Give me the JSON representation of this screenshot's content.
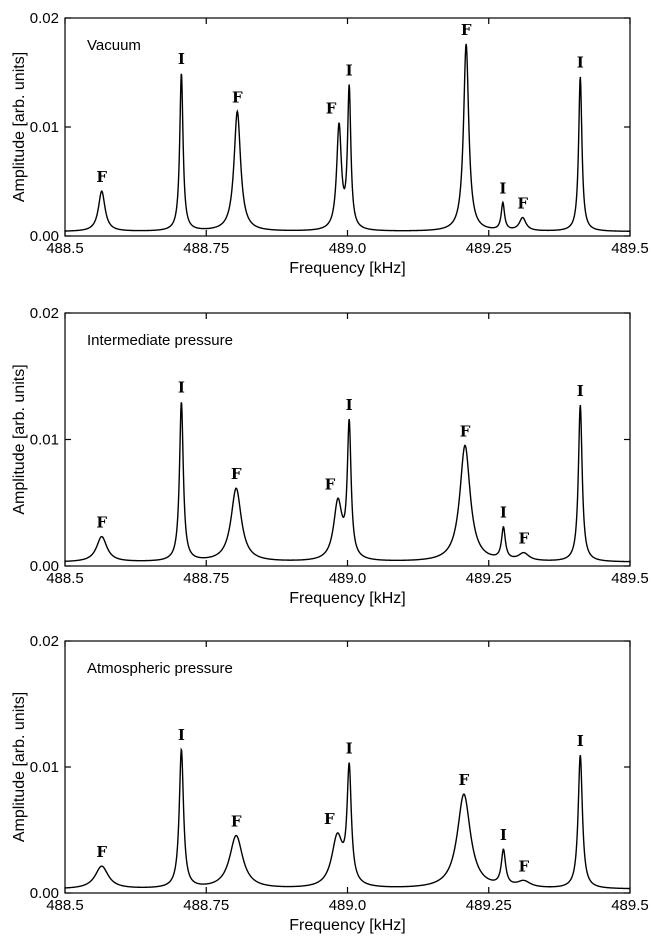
{
  "chart_data": [
    {
      "type": "line",
      "title": "Vacuum",
      "xlabel": "Frequency [kHz]",
      "ylabel": "Amplitude [arb. units]",
      "xlim": [
        488.5,
        489.5
      ],
      "ylim": [
        0,
        0.02
      ],
      "xticks": [
        "488.5",
        "488.75",
        "489.0",
        "489.25",
        "489.5"
      ],
      "yticks": [
        "0.00",
        "0.01",
        "0.02"
      ],
      "baseline": 0.0004,
      "grid": false,
      "series": [
        {
          "peaks": [
            {
              "x": 488.565,
              "y": 0.0037,
              "label": "F",
              "width": 0.007
            },
            {
              "x": 488.706,
              "y": 0.0145,
              "label": "I",
              "width": 0.0035
            },
            {
              "x": 488.805,
              "y": 0.011,
              "label": "F",
              "width": 0.007
            },
            {
              "x": 488.985,
              "y": 0.0095,
              "label": "F",
              "width": 0.005
            },
            {
              "x": 489.003,
              "y": 0.0128,
              "label": "I",
              "width": 0.0035
            },
            {
              "x": 489.21,
              "y": 0.0172,
              "label": "F",
              "width": 0.0055
            },
            {
              "x": 489.275,
              "y": 0.0025,
              "label": "I",
              "width": 0.0035
            },
            {
              "x": 489.31,
              "y": 0.0012,
              "label": "F",
              "width": 0.007
            },
            {
              "x": 489.412,
              "y": 0.0142,
              "label": "I",
              "width": 0.0035
            }
          ]
        }
      ]
    },
    {
      "type": "line",
      "title": "Intermediate pressure",
      "xlabel": "Frequency [kHz]",
      "ylabel": "Amplitude [arb. units]",
      "xlim": [
        488.5,
        489.5
      ],
      "ylim": [
        0,
        0.02
      ],
      "xticks": [
        "488.5",
        "488.75",
        "489.0",
        "489.25",
        "489.5"
      ],
      "yticks": [
        "0.00",
        "0.01",
        "0.02"
      ],
      "baseline": 0.0003,
      "grid": false,
      "series": [
        {
          "peaks": [
            {
              "x": 488.565,
              "y": 0.002,
              "label": "F",
              "width": 0.011
            },
            {
              "x": 488.706,
              "y": 0.0126,
              "label": "I",
              "width": 0.004
            },
            {
              "x": 488.803,
              "y": 0.0058,
              "label": "F",
              "width": 0.011
            },
            {
              "x": 488.983,
              "y": 0.0046,
              "label": "F",
              "width": 0.009
            },
            {
              "x": 489.003,
              "y": 0.0105,
              "label": "I",
              "width": 0.004
            },
            {
              "x": 489.208,
              "y": 0.0092,
              "label": "F",
              "width": 0.011
            },
            {
              "x": 489.276,
              "y": 0.0025,
              "label": "I",
              "width": 0.004
            },
            {
              "x": 489.312,
              "y": 0.0006,
              "label": "F",
              "width": 0.011
            },
            {
              "x": 489.412,
              "y": 0.0124,
              "label": "I",
              "width": 0.004
            }
          ]
        }
      ]
    },
    {
      "type": "line",
      "title": "Atmospheric pressure",
      "xlabel": "Frequency [kHz]",
      "ylabel": "Amplitude [arb. units]",
      "xlim": [
        488.5,
        489.5
      ],
      "ylim": [
        0,
        0.02
      ],
      "xticks": [
        "488.5",
        "488.75",
        "489.0",
        "489.25",
        "489.5"
      ],
      "yticks": [
        "0.00",
        "0.01",
        "0.02"
      ],
      "baseline": 0.0003,
      "grid": false,
      "series": [
        {
          "peaks": [
            {
              "x": 488.565,
              "y": 0.0018,
              "label": "F",
              "width": 0.014
            },
            {
              "x": 488.706,
              "y": 0.011,
              "label": "I",
              "width": 0.0045
            },
            {
              "x": 488.803,
              "y": 0.0042,
              "label": "F",
              "width": 0.014
            },
            {
              "x": 488.982,
              "y": 0.004,
              "label": "F",
              "width": 0.012
            },
            {
              "x": 489.003,
              "y": 0.009,
              "label": "I",
              "width": 0.0045
            },
            {
              "x": 489.206,
              "y": 0.0075,
              "label": "F",
              "width": 0.014
            },
            {
              "x": 489.276,
              "y": 0.0028,
              "label": "I",
              "width": 0.0045
            },
            {
              "x": 489.312,
              "y": 0.0005,
              "label": "F",
              "width": 0.014
            },
            {
              "x": 489.412,
              "y": 0.0106,
              "label": "I",
              "width": 0.0045
            }
          ]
        }
      ]
    }
  ]
}
